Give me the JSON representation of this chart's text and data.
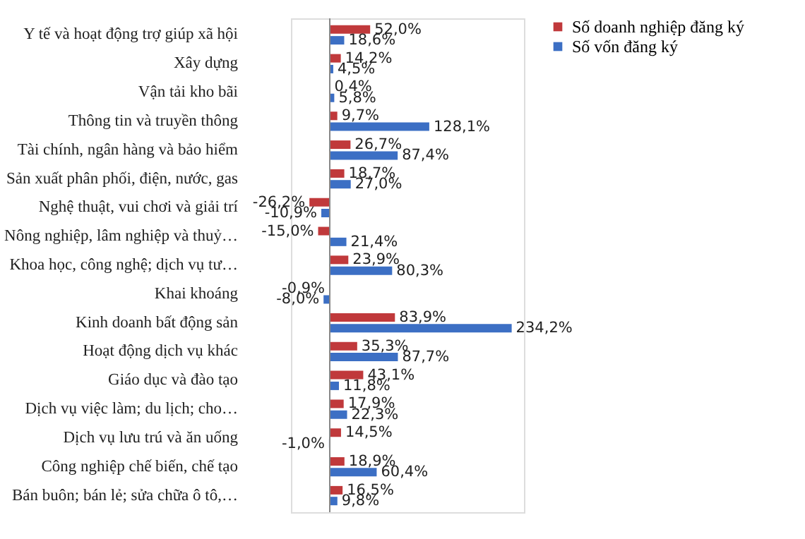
{
  "chart_data": {
    "type": "bar",
    "orientation": "horizontal",
    "categories": [
      "Y tế và hoạt động trợ giúp xã hội",
      "Xây dựng",
      "Vận tải kho bãi",
      "Thông tin và truyền thông",
      "Tài chính, ngân hàng và bảo hiểm",
      "Sản xuất phân phối, điện, nước, gas",
      "Nghệ thuật, vui chơi và giải trí",
      "Nông nghiệp, lâm nghiệp và thuỷ…",
      "Khoa học, công nghệ; dịch vụ tư…",
      "Khai khoáng",
      "Kinh doanh bất động sản",
      "Hoạt động dịch vụ khác",
      "Giáo dục và đào tạo",
      "Dịch vụ việc làm; du lịch; cho…",
      "Dịch vụ lưu trú và ăn uống",
      "Công nghiệp chế biến, chế tạo",
      "Bán buôn; bán lẻ; sửa chữa ô tô,…"
    ],
    "series": [
      {
        "name": "Số doanh nghiệp đăng ký",
        "color": "#c0393b",
        "values": [
          52.0,
          14.2,
          0.4,
          9.7,
          26.7,
          18.7,
          -26.2,
          -15.0,
          23.9,
          -0.9,
          83.9,
          35.3,
          43.1,
          17.9,
          14.5,
          18.9,
          16.5
        ],
        "value_labels": [
          "52,0%",
          "14,2%",
          "0,4%",
          "9,7%",
          "26,7%",
          "18,7%",
          "-26,2%",
          "-15,0%",
          "23,9%",
          "-0,9%",
          "83,9%",
          "35,3%",
          "43,1%",
          "17,9%",
          "14,5%",
          "18,9%",
          "16,5%"
        ]
      },
      {
        "name": "Số vốn đăng ký",
        "color": "#3c6fc4",
        "values": [
          18.6,
          4.5,
          5.8,
          128.1,
          87.4,
          27.0,
          -10.9,
          21.4,
          80.3,
          -8.0,
          234.2,
          87.7,
          11.8,
          22.3,
          -1.0,
          60.4,
          9.8
        ],
        "value_labels": [
          "18,6%",
          "4,5%",
          "5,8%",
          "128,1%",
          "87,4%",
          "27,0%",
          "-10,9%",
          "21,4%",
          "80,3%",
          "-8,0%",
          "234,2%",
          "87,7%",
          "11,8%",
          "22,3%",
          "-1,0%",
          "60,4%",
          "9,8%"
        ]
      }
    ],
    "xlim": [
      -50,
      250
    ],
    "tick_labels": "y",
    "legend": "right"
  }
}
